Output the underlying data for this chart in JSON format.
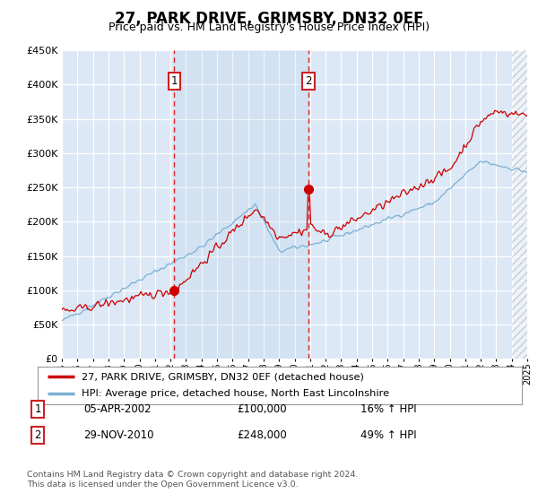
{
  "title": "27, PARK DRIVE, GRIMSBY, DN32 0EF",
  "subtitle": "Price paid vs. HM Land Registry's House Price Index (HPI)",
  "footnote": "Contains HM Land Registry data © Crown copyright and database right 2024.\nThis data is licensed under the Open Government Licence v3.0.",
  "legend_line1": "27, PARK DRIVE, GRIMSBY, DN32 0EF (detached house)",
  "legend_line2": "HPI: Average price, detached house, North East Lincolnshire",
  "transaction1_date": "05-APR-2002",
  "transaction1_price": "£100,000",
  "transaction1_hpi": "16% ↑ HPI",
  "transaction2_date": "29-NOV-2010",
  "transaction2_price": "£248,000",
  "transaction2_hpi": "49% ↑ HPI",
  "ylim": [
    0,
    450000
  ],
  "yticks": [
    0,
    50000,
    100000,
    150000,
    200000,
    250000,
    300000,
    350000,
    400000,
    450000
  ],
  "background_color": "#dce8f5",
  "line_color_red": "#cc0000",
  "line_color_blue": "#7aafd4",
  "vline_color": "#dd2222",
  "transaction1_x": 2002.25,
  "transaction1_y": 100000,
  "transaction2_x": 2010.9,
  "transaction2_y": 248000,
  "xmin": 1995,
  "xmax": 2025,
  "shade_between": true,
  "hatch_right": true
}
